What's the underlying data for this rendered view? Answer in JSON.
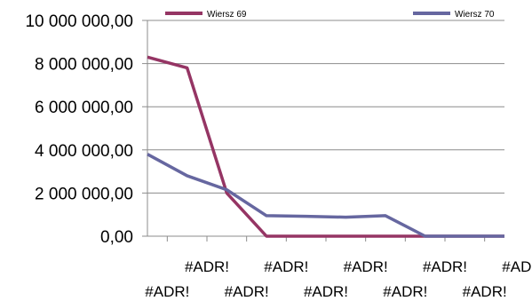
{
  "chart_data": {
    "type": "line",
    "categories": [
      "#ADR!",
      "#ADR!",
      "#ADR!",
      "#ADR!",
      "#ADR!",
      "#ADR!",
      "#ADR!",
      "#ADR!",
      "#ADR!",
      "#ADR!"
    ],
    "y_tick_labels": [
      "0,00",
      "2 000 000,00",
      "4 000 000,00",
      "6 000 000,00",
      "8 000 000,00",
      "10 000 000,00"
    ],
    "ylim": [
      0,
      10000000
    ],
    "y_ticks": [
      0,
      2000000,
      4000000,
      6000000,
      8000000,
      10000000
    ],
    "grid": true,
    "legend_position": "top",
    "series": [
      {
        "name": "Wiersz 69",
        "color": "#953564",
        "values": [
          8300000,
          7800000,
          2000000,
          0,
          0,
          0,
          0,
          0,
          0,
          0
        ]
      },
      {
        "name": "Wiersz 70",
        "color": "#6667a0",
        "values": [
          3800000,
          2800000,
          2150000,
          950000,
          920000,
          880000,
          950000,
          0,
          0,
          0
        ]
      }
    ]
  }
}
